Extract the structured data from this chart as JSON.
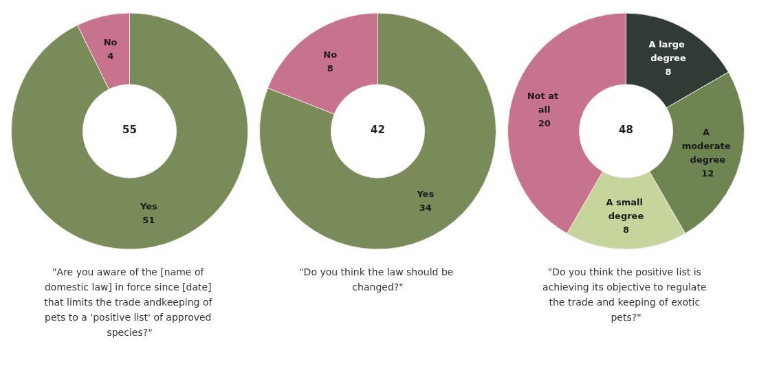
{
  "chart_data": [
    {
      "type": "donut",
      "title": "\"Are you aware of the [name of domestic law] in force since [date] that limits the trade andkeeping of pets to a 'positive list' of approved species?\"",
      "categories": [
        "Yes",
        "No"
      ],
      "values": [
        51,
        4
      ],
      "colors": [
        "#788b58",
        "#c8738e"
      ],
      "data_labels": true,
      "legend": false,
      "annotations": [
        "55"
      ]
    },
    {
      "type": "donut",
      "title": "\"Do you think the law should be changed?\"",
      "categories": [
        "Yes",
        "No"
      ],
      "values": [
        34,
        8
      ],
      "colors": [
        "#788b58",
        "#c8738e"
      ],
      "data_labels": true,
      "legend": false,
      "annotations": [
        "42"
      ]
    },
    {
      "type": "donut",
      "title": "\"Do you think the positive list is achieving its objective to regulate the trade and keeping of exotic pets?\"",
      "categories": [
        "A large degree",
        "A moderate degree",
        "A small degree",
        "Not at all"
      ],
      "values": [
        8,
        12,
        8,
        20
      ],
      "colors": [
        "#2f3b34",
        "#6e8551",
        "#c5d59c",
        "#c8738e"
      ],
      "data_labels": true,
      "legend": false,
      "annotations": [
        "48"
      ]
    }
  ]
}
